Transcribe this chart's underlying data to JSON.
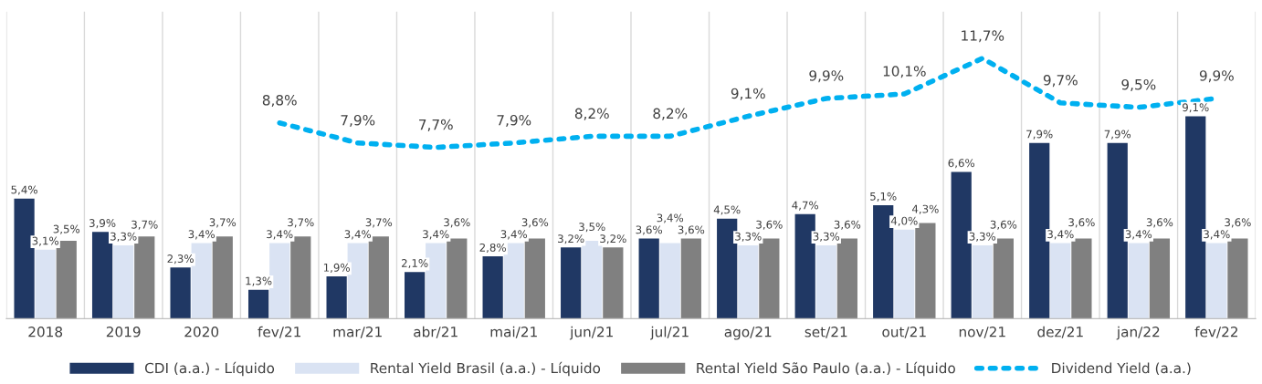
{
  "chart_data": {
    "type": "bar",
    "categories": [
      "2018",
      "2019",
      "2020",
      "fev/21",
      "mar/21",
      "abr/21",
      "mai/21",
      "jun/21",
      "jul/21",
      "ago/21",
      "set/21",
      "out/21",
      "nov/21",
      "dez/21",
      "jan/22",
      "fev/22"
    ],
    "series": [
      {
        "name": "CDI (a.a.) - Líquido",
        "color": "#203864",
        "values": [
          5.4,
          3.9,
          2.3,
          1.3,
          1.9,
          2.1,
          2.8,
          3.2,
          3.6,
          4.5,
          4.7,
          5.1,
          6.6,
          7.9,
          7.9,
          9.1
        ],
        "value_labels": [
          "5,4%",
          "3,9%",
          "2,3%",
          "1,3%",
          "1,9%",
          "2,1%",
          "2,8%",
          "3,2%",
          "3,6%",
          "4,5%",
          "4,7%",
          "5,1%",
          "6,6%",
          "7,9%",
          "7,9%",
          "9,1%"
        ]
      },
      {
        "name": "Rental Yield Brasil (a.a.) - Líquido",
        "color": "#dae3f3",
        "values": [
          3.1,
          3.3,
          3.4,
          3.4,
          3.4,
          3.4,
          3.4,
          3.5,
          3.4,
          3.3,
          3.3,
          4.0,
          3.3,
          3.4,
          3.4,
          3.4
        ],
        "value_labels": [
          "3,1%",
          "3,3%",
          "3,4%",
          "3,4%",
          "3,4%",
          "3,4%",
          "3,4%",
          "3,5%",
          "3,4%",
          "3,3%",
          "3,3%",
          "4,0%",
          "3,3%",
          "3,4%",
          "3,4%",
          "3,4%"
        ]
      },
      {
        "name": "Rental Yield São Paulo (a.a.) - Líquido",
        "color": "#808080",
        "values": [
          3.5,
          3.7,
          3.7,
          3.7,
          3.7,
          3.6,
          3.6,
          3.2,
          3.6,
          3.6,
          3.6,
          4.3,
          3.6,
          3.6,
          3.6,
          3.6
        ],
        "value_labels": [
          "3,5%",
          "3,7%",
          "3,7%",
          "3,7%",
          "3,7%",
          "3,6%",
          "3,6%",
          "3,2%",
          "3,6%",
          "3,6%",
          "3,6%",
          "4,3%",
          "3,6%",
          "3,6%",
          "3,6%",
          "3,6%"
        ]
      },
      {
        "name": "Dividend Yield (a.a.)",
        "type": "line",
        "color": "#00b0f0",
        "line_style": "dotted",
        "marker": "none",
        "values": [
          null,
          null,
          null,
          8.8,
          7.9,
          7.7,
          7.9,
          8.2,
          8.2,
          9.1,
          9.9,
          10.1,
          11.7,
          9.7,
          9.5,
          9.9
        ],
        "value_labels": [
          null,
          null,
          null,
          "8,8%",
          "7,9%",
          "7,7%",
          "7,9%",
          "8,2%",
          "8,2%",
          "9,1%",
          "9,9%",
          "10,1%",
          "11,7%",
          "9,7%",
          "9,5%",
          "9,9%"
        ]
      }
    ],
    "legend": "bottom",
    "grid": false
  }
}
